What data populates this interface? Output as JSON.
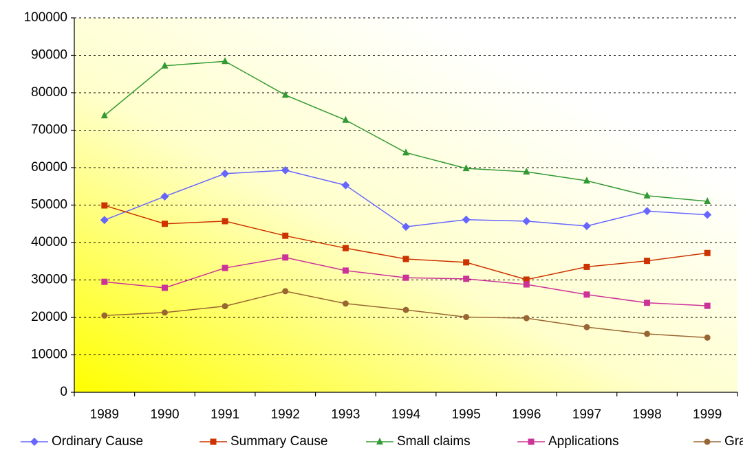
{
  "chart_data": {
    "type": "line",
    "categories": [
      "1989",
      "1990",
      "1991",
      "1992",
      "1993",
      "1994",
      "1995",
      "1996",
      "1997",
      "1998",
      "1999"
    ],
    "series": [
      {
        "name": "Ordinary Cause",
        "color": "#6666ff",
        "marker": "diamond",
        "values": [
          46000,
          52300,
          58400,
          59300,
          55300,
          44200,
          46100,
          45700,
          44400,
          48400,
          47400
        ]
      },
      {
        "name": "Summary Cause",
        "color": "#cc3300",
        "marker": "square",
        "values": [
          49900,
          45000,
          45700,
          41800,
          38500,
          35600,
          34700,
          30100,
          33500,
          35100,
          37200
        ]
      },
      {
        "name": "Small claims",
        "color": "#339933",
        "marker": "triangle",
        "values": [
          73900,
          87200,
          88400,
          79400,
          72700,
          64000,
          59800,
          58900,
          56500,
          52500,
          51000
        ]
      },
      {
        "name": "Applications",
        "color": "#cc3399",
        "marker": "square",
        "values": [
          29500,
          27900,
          33200,
          36000,
          32500,
          30600,
          30300,
          28800,
          26100,
          23900,
          23100
        ]
      },
      {
        "name": "Grants",
        "color": "#996633",
        "marker": "circle",
        "values": [
          20500,
          21300,
          23000,
          27000,
          23700,
          22000,
          20100,
          19800,
          17400,
          15600,
          14600
        ]
      }
    ],
    "ylim": [
      0,
      100000
    ],
    "yticks": [
      0,
      10000,
      20000,
      30000,
      40000,
      50000,
      60000,
      70000,
      80000,
      90000,
      100000
    ],
    "grid": true,
    "legend": "bottom"
  }
}
